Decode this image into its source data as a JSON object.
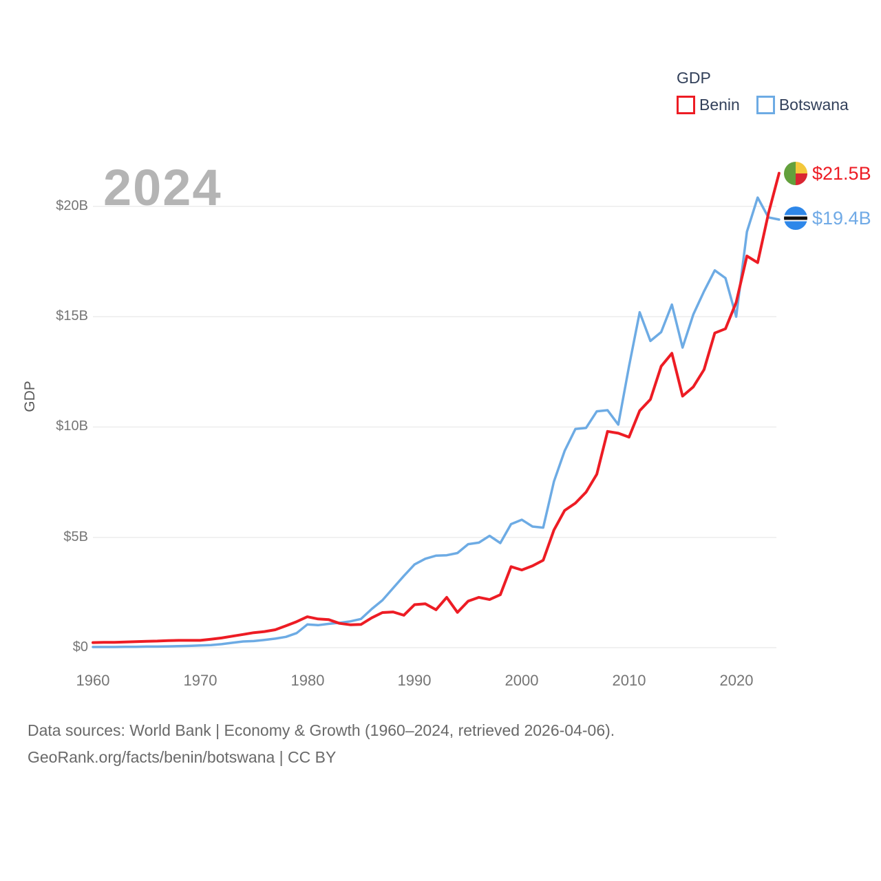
{
  "watermark": "2024",
  "legend": {
    "title": "GDP",
    "items": [
      {
        "label": "Benin",
        "color": "#ed1c24"
      },
      {
        "label": "Botswana",
        "color": "#6dabe4"
      }
    ]
  },
  "y_axis": {
    "label": "GDP",
    "ticks": [
      "$0",
      "$5B",
      "$10B",
      "$15B",
      "$20B"
    ]
  },
  "x_axis": {
    "ticks": [
      "1960",
      "1970",
      "1980",
      "1990",
      "2000",
      "2010",
      "2020"
    ]
  },
  "end_labels": [
    {
      "series": "Benin",
      "value": "$21.5B",
      "color": "#ed1c24",
      "flag": "benin-flag",
      "flag_colors": {
        "green": "#63a03c",
        "yellow": "#f3c83b",
        "red": "#d92632"
      }
    },
    {
      "series": "Botswana",
      "value": "$19.4B",
      "color": "#70aae6",
      "flag": "botswana-flag",
      "flag_colors": {
        "blue": "#2e87e9",
        "black": "#111111",
        "white": "#ffffff"
      }
    }
  ],
  "footer": {
    "line1": "Data sources: World Bank | Economy & Growth (1960–2024, retrieved 2026-04-06).",
    "line2": "GeoRank.org/facts/benin/botswana | CC BY"
  },
  "chart_data": {
    "type": "line",
    "title": "GDP",
    "xlabel": "",
    "ylabel": "GDP",
    "xlim": [
      1960,
      2024
    ],
    "ylim": [
      0,
      22
    ],
    "grid": "horizontal",
    "legend_position": "top-right",
    "y_gridlines_billions": [
      0,
      5,
      10,
      15,
      20
    ],
    "x": [
      1960,
      1961,
      1962,
      1963,
      1964,
      1965,
      1966,
      1967,
      1968,
      1969,
      1970,
      1971,
      1972,
      1973,
      1974,
      1975,
      1976,
      1977,
      1978,
      1979,
      1980,
      1981,
      1982,
      1983,
      1984,
      1985,
      1986,
      1987,
      1988,
      1989,
      1990,
      1991,
      1992,
      1993,
      1994,
      1995,
      1996,
      1997,
      1998,
      1999,
      2000,
      2001,
      2002,
      2003,
      2004,
      2005,
      2006,
      2007,
      2008,
      2009,
      2010,
      2011,
      2012,
      2013,
      2014,
      2015,
      2016,
      2017,
      2018,
      2019,
      2020,
      2021,
      2022,
      2023,
      2024
    ],
    "series": [
      {
        "name": "Botswana",
        "color": "#6dabe4",
        "width": 3.5,
        "unit": "billion USD",
        "values": [
          0.03,
          0.03,
          0.03,
          0.04,
          0.04,
          0.05,
          0.05,
          0.06,
          0.07,
          0.08,
          0.1,
          0.12,
          0.16,
          0.22,
          0.28,
          0.3,
          0.35,
          0.41,
          0.49,
          0.66,
          1.05,
          1.02,
          1.08,
          1.13,
          1.19,
          1.3,
          1.75,
          2.15,
          2.7,
          3.25,
          3.77,
          4.03,
          4.17,
          4.19,
          4.29,
          4.69,
          4.76,
          5.07,
          4.74,
          5.6,
          5.8,
          5.49,
          5.44,
          7.53,
          8.92,
          9.91,
          9.96,
          10.71,
          10.76,
          10.11,
          12.75,
          15.2,
          13.9,
          14.3,
          15.55,
          13.6,
          15.1,
          16.15,
          17.1,
          16.75,
          15.0,
          18.85,
          20.4,
          19.5,
          19.4
        ]
      },
      {
        "name": "Benin",
        "color": "#ed1c24",
        "width": 4,
        "unit": "billion USD",
        "values": [
          0.23,
          0.24,
          0.24,
          0.26,
          0.27,
          0.29,
          0.3,
          0.32,
          0.33,
          0.33,
          0.33,
          0.38,
          0.44,
          0.52,
          0.6,
          0.68,
          0.73,
          0.81,
          0.99,
          1.18,
          1.4,
          1.3,
          1.27,
          1.1,
          1.04,
          1.05,
          1.35,
          1.59,
          1.62,
          1.47,
          1.95,
          1.99,
          1.72,
          2.28,
          1.6,
          2.11,
          2.28,
          2.18,
          2.4,
          3.67,
          3.52,
          3.71,
          3.96,
          5.33,
          6.22,
          6.55,
          7.05,
          7.86,
          9.8,
          9.72,
          9.54,
          10.74,
          11.25,
          12.75,
          13.34,
          11.4,
          11.82,
          12.6,
          14.26,
          14.45,
          15.65,
          17.75,
          17.45,
          19.67,
          21.5
        ]
      }
    ]
  }
}
